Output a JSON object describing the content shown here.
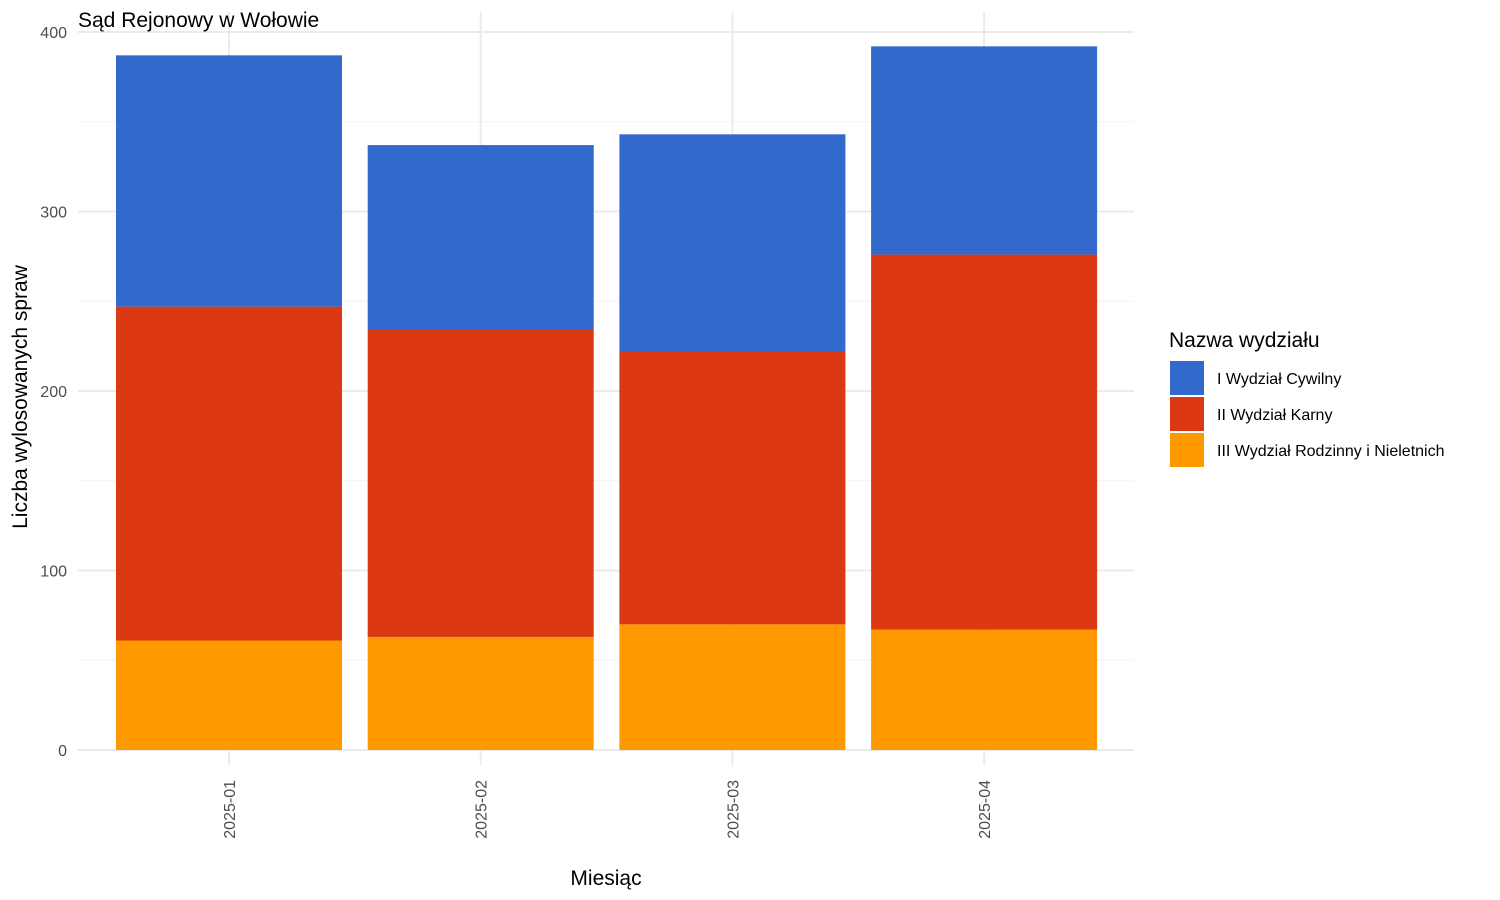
{
  "chart_data": {
    "type": "bar",
    "stacked": true,
    "title": "Sąd Rejonowy w Wołowie",
    "xlabel": "Miesiąc",
    "ylabel": "Liczba wylosowanych spraw",
    "categories": [
      "2025-01",
      "2025-02",
      "2025-03",
      "2025-04"
    ],
    "ylim": [
      0,
      400
    ],
    "yticks": [
      0,
      100,
      200,
      300,
      400
    ],
    "grid": true,
    "legend": {
      "title": "Nazwa wydziału",
      "position": "right"
    },
    "series": [
      {
        "name": "I Wydział Cywilny",
        "color": "#3368CC",
        "values": [
          140,
          103,
          121,
          116
        ]
      },
      {
        "name": "II Wydział Karny",
        "color": "#DC3912",
        "values": [
          186,
          171,
          152,
          209
        ]
      },
      {
        "name": "III Wydział Rodzinny i Nieletnich",
        "color": "#FF9900",
        "values": [
          61,
          63,
          70,
          67
        ]
      }
    ],
    "stack_order": [
      2,
      1,
      0
    ]
  }
}
